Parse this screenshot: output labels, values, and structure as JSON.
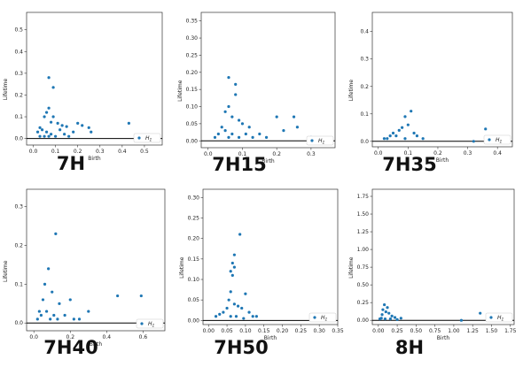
{
  "chart_data": [
    {
      "type": "scatter",
      "title": "7H",
      "xlabel": "Birth",
      "ylabel": "Lifetime",
      "xlim": [
        -0.03,
        0.58
      ],
      "ylim": [
        -0.03,
        0.58
      ],
      "xticks": [
        "0.0",
        "0.1",
        "0.2",
        "0.3",
        "0.4",
        "0.5"
      ],
      "xtick_values": [
        0,
        0.1,
        0.2,
        0.3,
        0.4,
        0.5
      ],
      "yticks": [
        "0.0",
        "0.1",
        "0.2",
        "0.3",
        "0.4",
        "0.5"
      ],
      "ytick_values": [
        0,
        0.1,
        0.2,
        0.3,
        0.4,
        0.5
      ],
      "legend": "H1",
      "legend_position": "lower-right",
      "baseline": true,
      "series": [
        {
          "name": "H1",
          "color": "#1f77b4",
          "points": [
            [
              0.07,
              0.28
            ],
            [
              0.09,
              0.235
            ],
            [
              0.07,
              0.14
            ],
            [
              0.06,
              0.12
            ],
            [
              0.09,
              0.1
            ],
            [
              0.05,
              0.1
            ],
            [
              0.08,
              0.075
            ],
            [
              0.11,
              0.07
            ],
            [
              0.12,
              0.04
            ],
            [
              0.13,
              0.06
            ],
            [
              0.15,
              0.055
            ],
            [
              0.2,
              0.07
            ],
            [
              0.22,
              0.06
            ],
            [
              0.25,
              0.05
            ],
            [
              0.26,
              0.03
            ],
            [
              0.43,
              0.07
            ],
            [
              0.03,
              0.05
            ],
            [
              0.02,
              0.03
            ],
            [
              0.04,
              0.04
            ],
            [
              0.06,
              0.03
            ],
            [
              0.08,
              0.02
            ],
            [
              0.1,
              0.01
            ],
            [
              0.14,
              0.02
            ],
            [
              0.16,
              0.01
            ],
            [
              0.18,
              0.03
            ],
            [
              0.05,
              0.01
            ],
            [
              0.07,
              0.01
            ],
            [
              0.03,
              0.01
            ]
          ]
        }
      ]
    },
    {
      "type": "scatter",
      "title": "7H15",
      "xlabel": "Birth",
      "ylabel": "Lifetime",
      "xlim": [
        -0.02,
        0.37
      ],
      "ylim": [
        -0.02,
        0.375
      ],
      "xticks": [
        "0.0",
        "0.1",
        "0.2",
        "0.3"
      ],
      "xtick_values": [
        0,
        0.1,
        0.2,
        0.3
      ],
      "yticks": [
        "0.00",
        "0.05",
        "0.10",
        "0.15",
        "0.20",
        "0.25",
        "0.30",
        "0.35"
      ],
      "ytick_values": [
        0,
        0.05,
        0.1,
        0.15,
        0.2,
        0.25,
        0.3,
        0.35
      ],
      "legend": "H1",
      "legend_position": "lower-right",
      "baseline": true,
      "series": [
        {
          "name": "H1",
          "color": "#1f77b4",
          "points": [
            [
              0.06,
              0.185
            ],
            [
              0.08,
              0.165
            ],
            [
              0.08,
              0.135
            ],
            [
              0.06,
              0.1
            ],
            [
              0.05,
              0.085
            ],
            [
              0.07,
              0.07
            ],
            [
              0.09,
              0.06
            ],
            [
              0.1,
              0.05
            ],
            [
              0.12,
              0.04
            ],
            [
              0.2,
              0.07
            ],
            [
              0.25,
              0.07
            ],
            [
              0.26,
              0.04
            ],
            [
              0.22,
              0.03
            ],
            [
              0.04,
              0.04
            ],
            [
              0.03,
              0.02
            ],
            [
              0.05,
              0.03
            ],
            [
              0.07,
              0.02
            ],
            [
              0.09,
              0.01
            ],
            [
              0.11,
              0.02
            ],
            [
              0.13,
              0.01
            ],
            [
              0.15,
              0.02
            ],
            [
              0.17,
              0.01
            ],
            [
              0.02,
              0.01
            ],
            [
              0.06,
              0.01
            ],
            [
              0.3,
              0.01
            ]
          ]
        }
      ]
    },
    {
      "type": "scatter",
      "title": "7H35",
      "xlabel": "Birth",
      "ylabel": "Lifetime",
      "xlim": [
        -0.02,
        0.45
      ],
      "ylim": [
        -0.02,
        0.47
      ],
      "xticks": [
        "0.0",
        "0.1",
        "0.2",
        "0.3",
        "0.4"
      ],
      "xtick_values": [
        0,
        0.1,
        0.2,
        0.3,
        0.4
      ],
      "yticks": [
        "0.0",
        "0.1",
        "0.2",
        "0.3",
        "0.4"
      ],
      "ytick_values": [
        0,
        0.1,
        0.2,
        0.3,
        0.4
      ],
      "legend": "H1",
      "legend_position": "lower-right",
      "baseline": true,
      "series": [
        {
          "name": "H1",
          "color": "#1f77b4",
          "points": [
            [
              0.11,
              0.11
            ],
            [
              0.09,
              0.09
            ],
            [
              0.1,
              0.06
            ],
            [
              0.08,
              0.05
            ],
            [
              0.07,
              0.04
            ],
            [
              0.12,
              0.03
            ],
            [
              0.05,
              0.03
            ],
            [
              0.04,
              0.02
            ],
            [
              0.03,
              0.01
            ],
            [
              0.06,
              0.02
            ],
            [
              0.09,
              0.01
            ],
            [
              0.13,
              0.02
            ],
            [
              0.15,
              0.01
            ],
            [
              0.36,
              0.045
            ],
            [
              0.02,
              0.01
            ],
            [
              0.32,
              0.0
            ]
          ]
        }
      ]
    },
    {
      "type": "scatter",
      "title": "7H40",
      "xlabel": "Birth",
      "ylabel": "Lifetime",
      "xlim": [
        -0.04,
        0.72
      ],
      "ylim": [
        -0.02,
        0.345
      ],
      "xticks": [
        "0.0",
        "0.2",
        "0.4",
        "0.6"
      ],
      "xtick_values": [
        0,
        0.2,
        0.4,
        0.6
      ],
      "yticks": [
        "0.0",
        "0.1",
        "0.2",
        "0.3"
      ],
      "ytick_values": [
        0,
        0.1,
        0.2,
        0.3
      ],
      "legend": "H1",
      "legend_position": "lower-right",
      "baseline": true,
      "series": [
        {
          "name": "H1",
          "color": "#1f77b4",
          "points": [
            [
              0.12,
              0.23
            ],
            [
              0.08,
              0.14
            ],
            [
              0.06,
              0.1
            ],
            [
              0.1,
              0.08
            ],
            [
              0.05,
              0.06
            ],
            [
              0.2,
              0.06
            ],
            [
              0.14,
              0.05
            ],
            [
              0.46,
              0.07
            ],
            [
              0.59,
              0.07
            ],
            [
              0.3,
              0.03
            ],
            [
              0.03,
              0.03
            ],
            [
              0.04,
              0.02
            ],
            [
              0.07,
              0.03
            ],
            [
              0.09,
              0.01
            ],
            [
              0.11,
              0.02
            ],
            [
              0.13,
              0.01
            ],
            [
              0.17,
              0.02
            ],
            [
              0.22,
              0.01
            ],
            [
              0.02,
              0.01
            ],
            [
              0.25,
              0.01
            ]
          ]
        }
      ]
    },
    {
      "type": "scatter",
      "title": "7H50",
      "xlabel": "Birth",
      "ylabel": "Lifetime",
      "xlim": [
        -0.015,
        0.35
      ],
      "ylim": [
        -0.01,
        0.32
      ],
      "xticks": [
        "0.00",
        "0.05",
        "0.10",
        "0.15",
        "0.20",
        "0.25",
        "0.30",
        "0.35"
      ],
      "xtick_values": [
        0,
        0.05,
        0.1,
        0.15,
        0.2,
        0.25,
        0.3,
        0.35
      ],
      "yticks": [
        "0.00",
        "0.05",
        "0.10",
        "0.15",
        "0.20",
        "0.25",
        "0.30"
      ],
      "ytick_values": [
        0,
        0.05,
        0.1,
        0.15,
        0.2,
        0.25,
        0.3
      ],
      "legend": "H1",
      "legend_position": "lower-right",
      "baseline": true,
      "series": [
        {
          "name": "H1",
          "color": "#1f77b4",
          "points": [
            [
              0.085,
              0.21
            ],
            [
              0.07,
              0.16
            ],
            [
              0.065,
              0.14
            ],
            [
              0.07,
              0.13
            ],
            [
              0.06,
              0.12
            ],
            [
              0.065,
              0.11
            ],
            [
              0.1,
              0.065
            ],
            [
              0.06,
              0.07
            ],
            [
              0.055,
              0.05
            ],
            [
              0.07,
              0.04
            ],
            [
              0.08,
              0.035
            ],
            [
              0.09,
              0.03
            ],
            [
              0.05,
              0.03
            ],
            [
              0.04,
              0.02
            ],
            [
              0.03,
              0.015
            ],
            [
              0.11,
              0.02
            ],
            [
              0.12,
              0.01
            ],
            [
              0.13,
              0.01
            ],
            [
              0.02,
              0.01
            ],
            [
              0.06,
              0.01
            ],
            [
              0.075,
              0.01
            ],
            [
              0.095,
              0.005
            ]
          ]
        }
      ]
    },
    {
      "type": "scatter",
      "title": "8H",
      "xlabel": "Birth",
      "ylabel": "Lifetime",
      "xlim": [
        -0.08,
        1.8
      ],
      "ylim": [
        -0.06,
        1.85
      ],
      "xticks": [
        "0.00",
        "0.25",
        "0.50",
        "0.75",
        "1.00",
        "1.25",
        "1.50",
        "1.75"
      ],
      "xtick_values": [
        0,
        0.25,
        0.5,
        0.75,
        1.0,
        1.25,
        1.5,
        1.75
      ],
      "yticks": [
        "0.00",
        "0.25",
        "0.50",
        "0.75",
        "1.00",
        "1.25",
        "1.50",
        "1.75"
      ],
      "ytick_values": [
        0,
        0.25,
        0.5,
        0.75,
        1.0,
        1.25,
        1.5,
        1.75
      ],
      "legend": "H1",
      "legend_position": "lower-right",
      "baseline": true,
      "series": [
        {
          "name": "H1",
          "color": "#1f77b4",
          "points": [
            [
              0.08,
              0.22
            ],
            [
              0.12,
              0.18
            ],
            [
              0.06,
              0.15
            ],
            [
              0.1,
              0.12
            ],
            [
              0.14,
              0.1
            ],
            [
              0.05,
              0.08
            ],
            [
              0.18,
              0.06
            ],
            [
              0.22,
              0.04
            ],
            [
              0.3,
              0.03
            ],
            [
              0.04,
              0.03
            ],
            [
              0.02,
              0.02
            ],
            [
              0.09,
              0.02
            ],
            [
              0.16,
              0.02
            ],
            [
              0.25,
              0.01
            ],
            [
              1.35,
              0.1
            ],
            [
              1.1,
              0.0
            ]
          ]
        }
      ]
    }
  ]
}
